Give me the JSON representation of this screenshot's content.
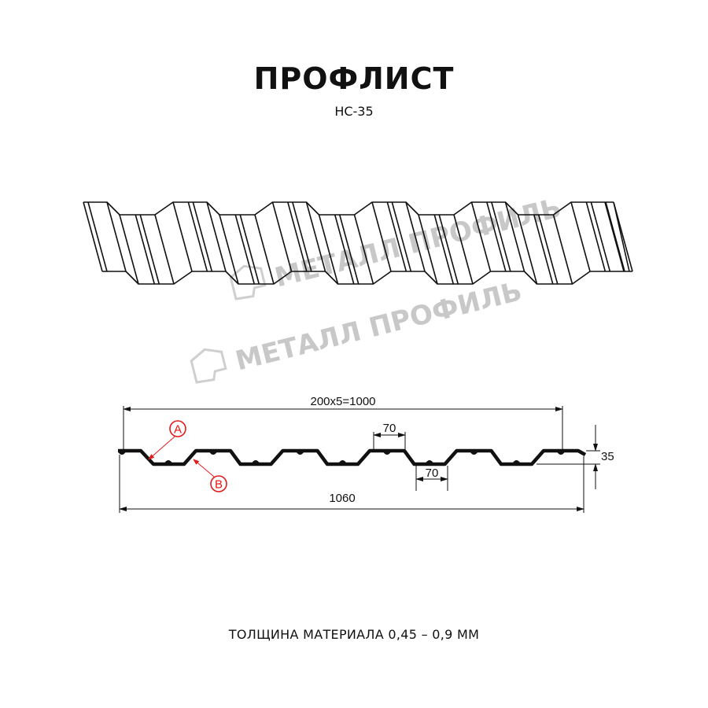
{
  "header": {
    "title": "ПРОФЛИСТ",
    "model": "НС-35"
  },
  "watermark": {
    "text": "МЕТАЛЛ ПРОФИЛЬ"
  },
  "drawing": {
    "pitch_label": "200x5=1000",
    "top_width_label": "70",
    "bottom_width_label": "70",
    "height_label": "35",
    "total_width_label": "1060",
    "marker_a": "A",
    "marker_b": "B",
    "marker_color": "#e11b1b"
  },
  "footer": {
    "thickness": "ТОЛЩИНА МАТЕРИАЛА 0,45 – 0,9 ММ"
  }
}
